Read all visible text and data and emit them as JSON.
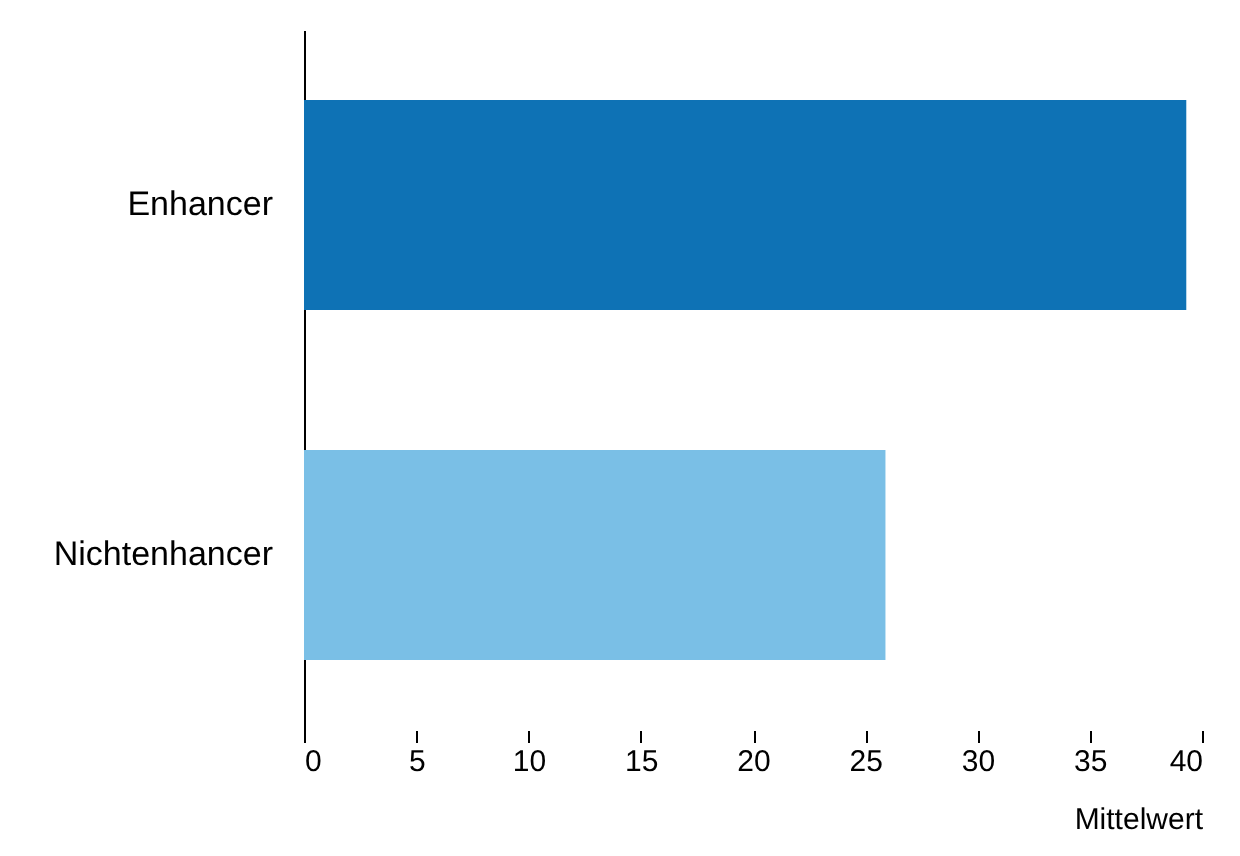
{
  "chart_data": {
    "type": "bar",
    "orientation": "horizontal",
    "categories": [
      "Enhancer",
      "Nichtenhancer"
    ],
    "values": [
      39.3,
      25.9
    ],
    "colors": [
      "#0e72b5",
      "#7abfe6"
    ],
    "xlabel": "Mittelwert",
    "xlim": [
      0,
      40
    ],
    "xticks": [
      0,
      5,
      10,
      15,
      20,
      25,
      30,
      35,
      40
    ],
    "grid": false
  }
}
